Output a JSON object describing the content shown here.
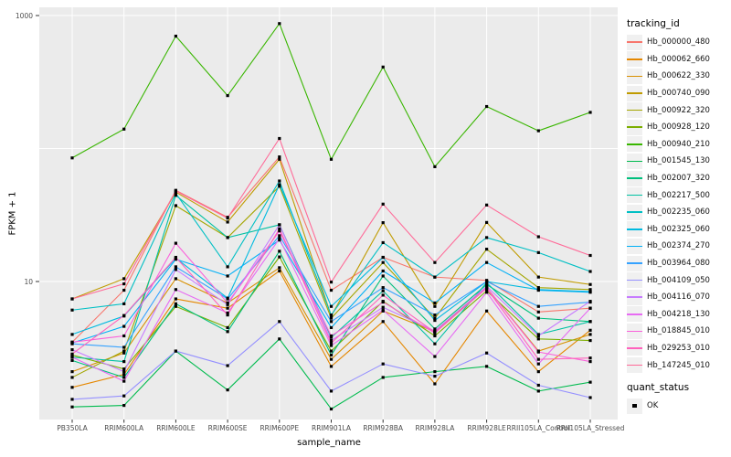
{
  "axes": {
    "x_title": "sample_name",
    "y_title": "FPKM + 1"
  },
  "legend": {
    "tracking_title": "tracking_id",
    "quant_title": "quant_status",
    "quant_item": "OK"
  },
  "colors": {
    "panel_bg": "#EBEBEB",
    "grid": "#FFFFFF",
    "point": "#000000",
    "tick": "#333333",
    "axis_text": "#4D4D4D",
    "legend_key_bg": "#F0F0F0"
  },
  "chart_data": {
    "type": "line",
    "title": "",
    "xlabel": "sample_name",
    "ylabel": "FPKM + 1",
    "y_scale": "log10",
    "ylim": [
      0.92,
      1150
    ],
    "legend_position": "right",
    "point_shape": "small-black-square",
    "grid": "major-white-on-gray",
    "y_tick_labels": [
      {
        "label": "1000",
        "value": 1000
      },
      {
        "label": "10",
        "value": 10
      }
    ],
    "y_major_gridlines": [
      10,
      100,
      1000
    ],
    "categories": [
      "PB350LA",
      "RRIM600LA",
      "RRIM600LE",
      "RRIM600SE",
      "RRIM600PE",
      "RRIM901LA",
      "RRIM928BA",
      "RRIM928LA",
      "RRIM928LE",
      "RRII105LA_Control",
      "RRII105LA_Stressed"
    ],
    "series": [
      {
        "name": "Hb_000000_480",
        "color": "#F8766D",
        "values": [
          3.5,
          8.6,
          48.5,
          30.4,
          86.5,
          8.6,
          15.2,
          10.8,
          10.2,
          5.9,
          6.3
        ]
      },
      {
        "name": "Hb_000062_660",
        "color": "#E58700",
        "values": [
          1.6,
          2.0,
          7.4,
          6.3,
          12.0,
          2.3,
          5.0,
          1.7,
          6.0,
          2.1,
          4.3
        ]
      },
      {
        "name": "Hb_000622_330",
        "color": "#D89000",
        "values": [
          2.1,
          2.9,
          10.5,
          6.9,
          12.7,
          2.6,
          6.0,
          4.2,
          9.0,
          3.0,
          4.0
        ]
      },
      {
        "name": "Hb_000740_090",
        "color": "#C09B00",
        "values": [
          7.4,
          10.5,
          47.0,
          28.0,
          83.0,
          5.5,
          27.7,
          6.5,
          27.8,
          10.8,
          9.5
        ]
      },
      {
        "name": "Hb_000922_320",
        "color": "#A3A500",
        "values": [
          1.9,
          3.0,
          37.2,
          21.4,
          52.0,
          5.3,
          13.9,
          5.3,
          17.5,
          9.0,
          8.7
        ]
      },
      {
        "name": "Hb_000928_120",
        "color": "#7CAE00",
        "values": [
          2.8,
          2.2,
          6.5,
          4.5,
          15.3,
          3.0,
          7.1,
          3.9,
          8.5,
          3.7,
          3.6
        ]
      },
      {
        "name": "Hb_000940_210",
        "color": "#39B600",
        "values": [
          85,
          140,
          700,
          250,
          870,
          83,
          410,
          73,
          207,
          136,
          187
        ]
      },
      {
        "name": "Hb_001545_130",
        "color": "#00BB4E",
        "values": [
          1.14,
          1.17,
          3.0,
          1.53,
          3.7,
          1.1,
          1.9,
          2.1,
          2.3,
          1.5,
          1.75
        ]
      },
      {
        "name": "Hb_002007_320",
        "color": "#00BF7D",
        "values": [
          2.55,
          1.9,
          6.8,
          4.2,
          16.9,
          2.8,
          11.0,
          4.4,
          9.5,
          5.3,
          5.0
        ]
      },
      {
        "name": "Hb_002217_500",
        "color": "#00C1A3",
        "values": [
          2.7,
          2.5,
          44.5,
          21.4,
          26.7,
          3.8,
          8.5,
          3.4,
          9.8,
          4.0,
          5.0
        ]
      },
      {
        "name": "Hb_002235_060",
        "color": "#00BFC4",
        "values": [
          6.1,
          6.8,
          46.0,
          12.9,
          57.0,
          5.6,
          19.6,
          10.8,
          21.4,
          16.5,
          11.9
        ]
      },
      {
        "name": "Hb_002325_060",
        "color": "#00BAE0",
        "values": [
          4.0,
          5.5,
          15.0,
          7.5,
          53.5,
          6.5,
          15.2,
          5.1,
          10.0,
          8.7,
          8.4
        ]
      },
      {
        "name": "Hb_002374_270",
        "color": "#00B0F6",
        "values": [
          3.45,
          4.6,
          14.7,
          11.0,
          20.5,
          4.5,
          12.0,
          6.9,
          13.9,
          8.6,
          8.3
        ]
      },
      {
        "name": "Hb_003964_080",
        "color": "#35A2FF",
        "values": [
          3.4,
          3.2,
          12.9,
          7.4,
          22.1,
          5.0,
          9.0,
          5.6,
          10.0,
          6.5,
          7.0
        ]
      },
      {
        "name": "Hb_004109_050",
        "color": "#9590FF",
        "values": [
          1.3,
          1.38,
          3.0,
          2.33,
          5.0,
          1.5,
          2.4,
          1.94,
          2.9,
          1.66,
          1.34
        ]
      },
      {
        "name": "Hb_004116_070",
        "color": "#C77CFF",
        "values": [
          3.07,
          2.1,
          12.3,
          6.7,
          26.7,
          3.6,
          6.4,
          4.25,
          9.2,
          3.9,
          7.1
        ]
      },
      {
        "name": "Hb_004218_130",
        "color": "#E76BF3",
        "values": [
          2.7,
          1.78,
          8.7,
          5.8,
          21.0,
          3.3,
          6.1,
          2.73,
          8.3,
          2.4,
          6.3
        ]
      },
      {
        "name": "Hb_018845_010",
        "color": "#FA62DB",
        "values": [
          3.5,
          3.9,
          19.4,
          6.9,
          24.0,
          3.9,
          7.0,
          4.1,
          9.0,
          2.95,
          2.5
        ]
      },
      {
        "name": "Hb_029253_010",
        "color": "#FF62BC",
        "values": [
          2.85,
          5.55,
          15.2,
          5.6,
          24.9,
          3.45,
          7.9,
          4.15,
          8.9,
          2.6,
          2.66
        ]
      },
      {
        "name": "Hb_147245_010",
        "color": "#FF6A98",
        "values": [
          7.4,
          9.6,
          48.0,
          30.0,
          119,
          9.9,
          38.2,
          13.9,
          37.6,
          21.7,
          15.7
        ]
      }
    ]
  }
}
